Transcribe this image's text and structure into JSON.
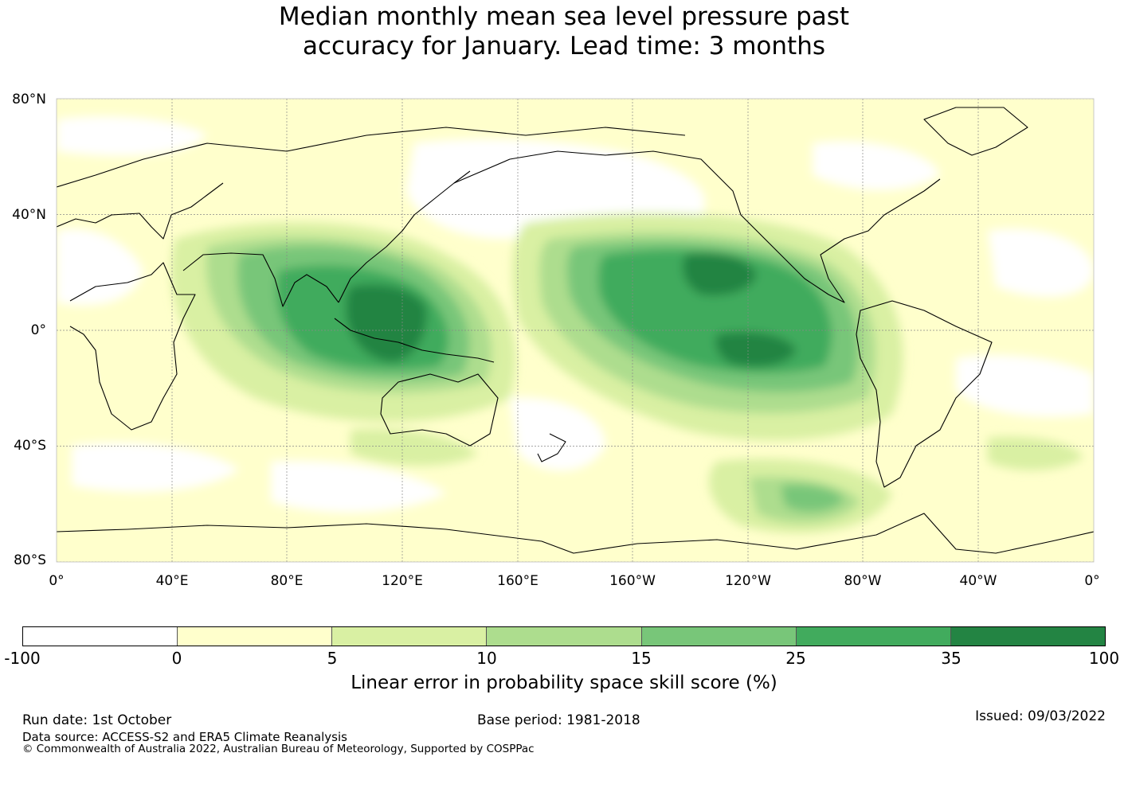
{
  "title_line1": "Median monthly mean sea level pressure past",
  "title_line2": "accuracy for January. Lead time: 3 months",
  "map": {
    "lat_labels": [
      "80°N",
      "40°N",
      "0°",
      "40°S",
      "80°S"
    ],
    "lon_labels": [
      "0°",
      "40°E",
      "80°E",
      "120°E",
      "160°E",
      "160°W",
      "120°W",
      "80°W",
      "40°W",
      "0°"
    ],
    "land_outline_color": "#000000",
    "gridline_color": "#888888"
  },
  "colorbar": {
    "ticks": [
      "-100",
      "0",
      "5",
      "10",
      "15",
      "25",
      "35",
      "100"
    ],
    "colors": [
      "#ffffff",
      "#ffffcc",
      "#d9f0a3",
      "#addd8e",
      "#78c679",
      "#41ab5d",
      "#238443"
    ],
    "label": "Linear error in probability space skill score (%)"
  },
  "footer": {
    "run_date": "Run date: 1st October",
    "base_period": "Base period: 1981-2018",
    "issued": "Issued: 09/03/2022",
    "data_source": "Data source: ACCESS-S2 and ERA5 Climate Reanalysis",
    "copyright": "© Commonwealth of Australia 2022, Australian Bureau of Meteorology, Supported by COSPPac"
  }
}
